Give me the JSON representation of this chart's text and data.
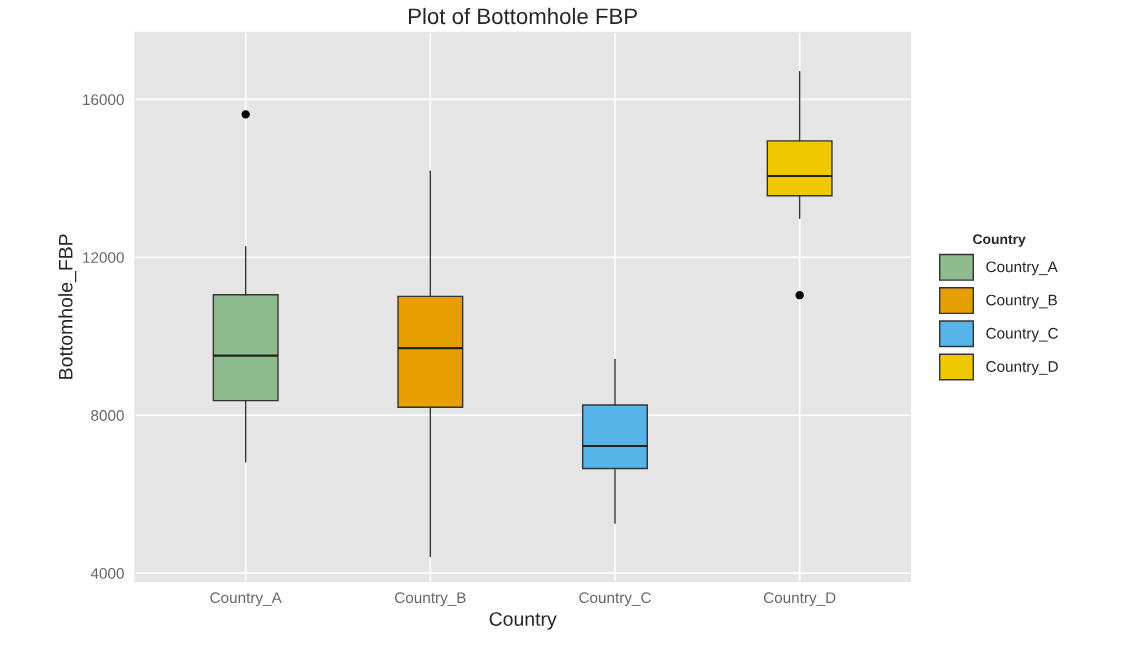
{
  "chart_data": {
    "type": "box",
    "title": "Plot of Bottomhole FBP",
    "xlabel": "Country",
    "ylabel": "Bottomhole_FBP",
    "legend_title": "Country",
    "categories": [
      "Country_A",
      "Country_B",
      "Country_C",
      "Country_D"
    ],
    "series": [
      {
        "name": "Country_A",
        "color": "#8fbc8f",
        "boxes": [
          {
            "low": 6820,
            "q1": 8370,
            "median": 9510,
            "q3": 11050,
            "high": 12270,
            "outliers": [
              15620
            ]
          },
          null,
          null,
          null
        ]
      },
      {
        "name": "Country_B",
        "color": "#e69f00",
        "boxes": [
          null,
          {
            "low": 4420,
            "q1": 8200,
            "median": 9700,
            "q3": 11010,
            "high": 14180
          },
          null,
          null
        ]
      },
      {
        "name": "Country_C",
        "color": "#56b4e9",
        "boxes": [
          null,
          null,
          {
            "low": 5260,
            "q1": 6650,
            "median": 7220,
            "q3": 8260,
            "high": 9410
          },
          null
        ]
      },
      {
        "name": "Country_D",
        "color": "#f0c800",
        "boxes": [
          null,
          null,
          null,
          {
            "low": 12990,
            "q1": 13560,
            "median": 14060,
            "q3": 14950,
            "high": 16700,
            "outliers": [
              11040
            ]
          }
        ]
      }
    ],
    "ylim": [
      3790,
      17700
    ],
    "yticks": [
      4000,
      8000,
      12000,
      16000
    ],
    "grid": true,
    "legend": "right"
  }
}
